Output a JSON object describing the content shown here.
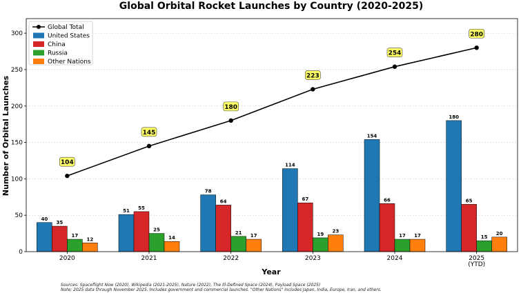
{
  "chart_data": {
    "type": "bar",
    "title": "Global Orbital Rocket Launches by Country (2020-2025)",
    "xlabel": "Year",
    "ylabel": "Number of Orbital Launches",
    "categories": [
      "2020",
      "2021",
      "2022",
      "2023",
      "2024",
      "2025"
    ],
    "category_sublabels": [
      "",
      "",
      "",
      "",
      "",
      "(YTD)"
    ],
    "ylim": [
      0,
      320
    ],
    "yticks": [
      0,
      50,
      100,
      150,
      200,
      250,
      300
    ],
    "grid": "horizontal",
    "legend_position": "top-left",
    "series": [
      {
        "name": "United States",
        "color": "#1f77b4",
        "values": [
          40,
          51,
          78,
          114,
          154,
          180
        ]
      },
      {
        "name": "China",
        "color": "#d62728",
        "values": [
          35,
          55,
          64,
          67,
          66,
          65
        ]
      },
      {
        "name": "Russia",
        "color": "#2ca02c",
        "values": [
          17,
          25,
          21,
          19,
          17,
          15
        ]
      },
      {
        "name": "Other Nations",
        "color": "#ff7f0e",
        "values": [
          12,
          14,
          17,
          23,
          17,
          20
        ]
      }
    ],
    "line_series": {
      "name": "Global Total",
      "color": "#000000",
      "values": [
        104,
        145,
        180,
        223,
        254,
        280
      ],
      "label_bg": "#ffff66"
    }
  },
  "footnotes": {
    "sources": "Sources: Spaceflight Now (2020), Wikipedia (2021-2025), Nature (2022), The Ill-Defined Space (2024), Payload Space (2025)",
    "note": "Note: 2025 data through November 2025. Includes government and commercial launches. \"Other Nations\" includes Japan, India, Europe, Iran, and others."
  }
}
